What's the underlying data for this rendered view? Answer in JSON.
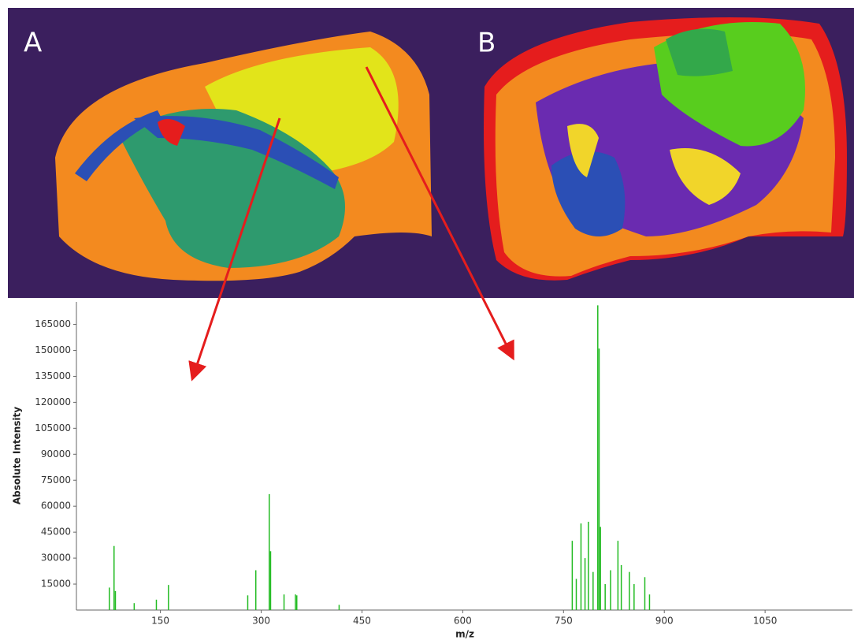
{
  "panels": [
    {
      "label": "A"
    },
    {
      "label": "B"
    }
  ],
  "chart_data": {
    "type": "spectrum",
    "x_label": "m/z",
    "y_label": "Absolute Intensity",
    "color": "#22bb22",
    "x": [
      74,
      81,
      83,
      111,
      144,
      162,
      280,
      292,
      312,
      314,
      334,
      351,
      353,
      416,
      763,
      769,
      776,
      782,
      787,
      794,
      801,
      803,
      805,
      812,
      820,
      831,
      836,
      848,
      855,
      871,
      878
    ],
    "values": [
      13000,
      37000,
      11000,
      4000,
      6000,
      14500,
      8500,
      23000,
      67000,
      34000,
      9000,
      9000,
      8500,
      3000,
      40000,
      18000,
      50000,
      30000,
      51000,
      22000,
      176000,
      151000,
      48000,
      15000,
      23000,
      40000,
      26000,
      22000,
      15000,
      19000,
      9000
    ],
    "xlim": [
      25,
      1180
    ],
    "ylim": [
      0,
      178000
    ],
    "xticks": [
      150,
      300,
      450,
      600,
      750,
      900,
      1050
    ],
    "yticks": [
      15000,
      30000,
      45000,
      60000,
      75000,
      90000,
      105000,
      120000,
      135000,
      150000,
      165000
    ]
  }
}
